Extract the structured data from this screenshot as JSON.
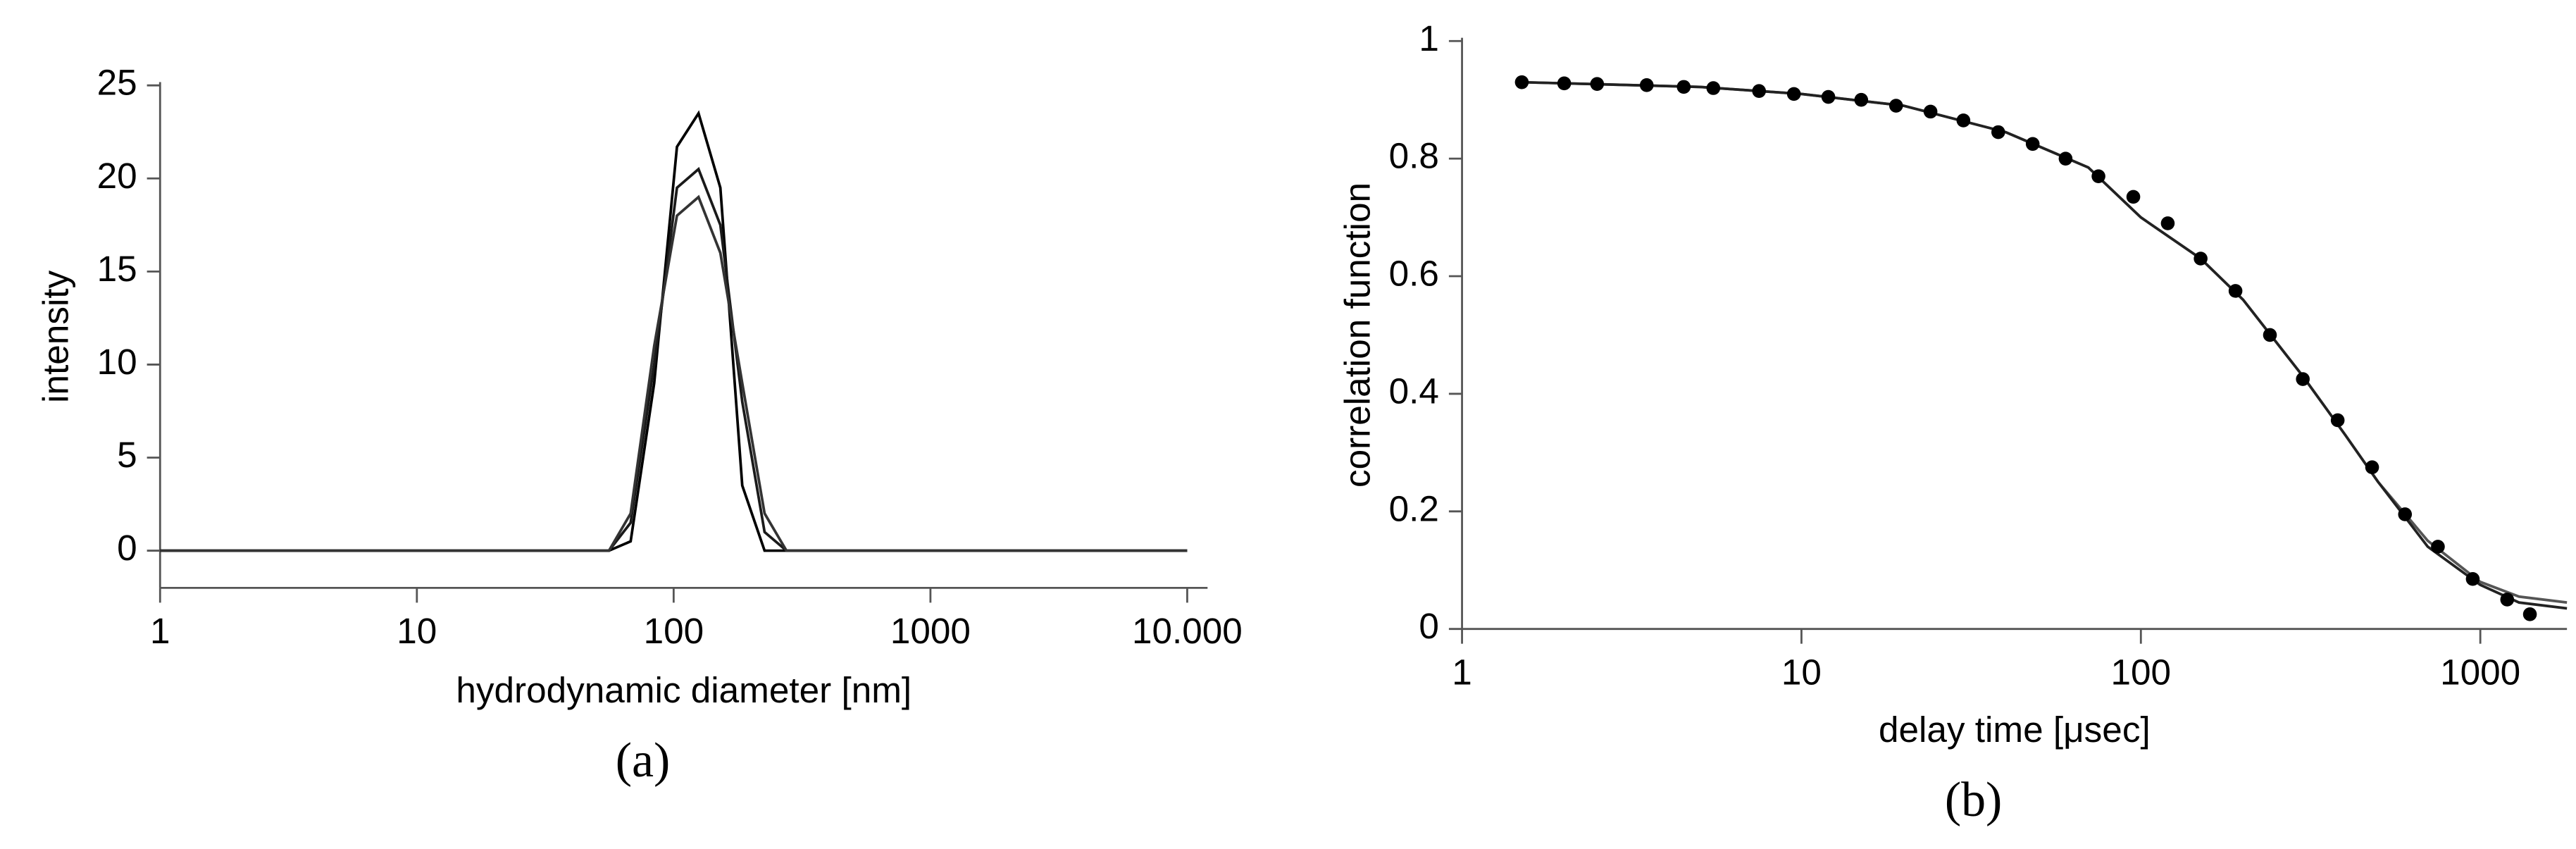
{
  "chart_data": [
    {
      "type": "line",
      "caption": "(a)",
      "x_label": "hydrodynamic diameter [nm]",
      "y_label": "intensity",
      "x_scale": "log",
      "xlim": [
        1,
        12000
      ],
      "ylim": [
        -2,
        25
      ],
      "xticks": [
        1,
        10,
        100,
        1000,
        {
          "value": 10000,
          "label": "10.000"
        }
      ],
      "yticks": [
        0,
        5,
        10,
        15,
        20,
        25
      ],
      "x": [
        1,
        56,
        68,
        84,
        103,
        125,
        152,
        185,
        226,
        275,
        10000
      ],
      "series": [
        {
          "color": "#000000",
          "values": [
            0,
            0,
            0.5,
            9,
            21.7,
            23.5,
            19.5,
            3.5,
            0,
            0,
            0
          ]
        },
        {
          "color": "#1a1a1a",
          "values": [
            0,
            0,
            1.5,
            10,
            19.5,
            20.5,
            17.5,
            8,
            1,
            0,
            0
          ]
        },
        {
          "color": "#333333",
          "values": [
            0,
            0,
            2,
            11,
            18,
            19,
            16,
            9,
            2,
            0,
            0
          ]
        }
      ]
    },
    {
      "type": "line",
      "caption": "(b)",
      "x_label": "delay time [μsec]",
      "y_label": "correlation function",
      "x_scale": "log",
      "xlim": [
        1,
        1800
      ],
      "ylim": [
        0,
        1
      ],
      "xticks": [
        1,
        10,
        100,
        1000
      ],
      "yticks": [
        0,
        0.2,
        0.4,
        0.6,
        0.8,
        1
      ],
      "series": [
        {
          "mode": "line",
          "color": "#555555",
          "x": [
            1.5,
            5,
            10,
            20,
            40,
            70,
            100,
            150,
            200,
            300,
            400,
            500,
            700,
            1000,
            1300,
            1800
          ],
          "values": [
            0.93,
            0.922,
            0.91,
            0.89,
            0.845,
            0.785,
            0.7,
            0.63,
            0.56,
            0.43,
            0.33,
            0.25,
            0.15,
            0.08,
            0.055,
            0.045
          ]
        },
        {
          "mode": "line",
          "color": "#222222",
          "x": [
            1.5,
            5,
            10,
            20,
            40,
            70,
            100,
            150,
            200,
            300,
            400,
            500,
            700,
            1000,
            1300,
            1800
          ],
          "values": [
            0.93,
            0.922,
            0.91,
            0.89,
            0.845,
            0.785,
            0.7,
            0.63,
            0.56,
            0.43,
            0.33,
            0.25,
            0.14,
            0.075,
            0.045,
            0.035
          ]
        },
        {
          "mode": "markers",
          "color": "#000000",
          "x": [
            1.5,
            2,
            2.5,
            3.5,
            4.5,
            5.5,
            7.5,
            9.5,
            12,
            15,
            19,
            24,
            30,
            38,
            48,
            60,
            75,
            95,
            120,
            150,
            190,
            240,
            300,
            380,
            480,
            600,
            750,
            950,
            1200,
            1400
          ],
          "values": [
            0.93,
            0.928,
            0.927,
            0.925,
            0.922,
            0.92,
            0.915,
            0.91,
            0.905,
            0.9,
            0.89,
            0.88,
            0.865,
            0.845,
            0.825,
            0.8,
            0.77,
            0.735,
            0.69,
            0.63,
            0.575,
            0.5,
            0.425,
            0.355,
            0.275,
            0.195,
            0.14,
            0.085,
            0.05,
            0.025
          ]
        }
      ]
    }
  ]
}
